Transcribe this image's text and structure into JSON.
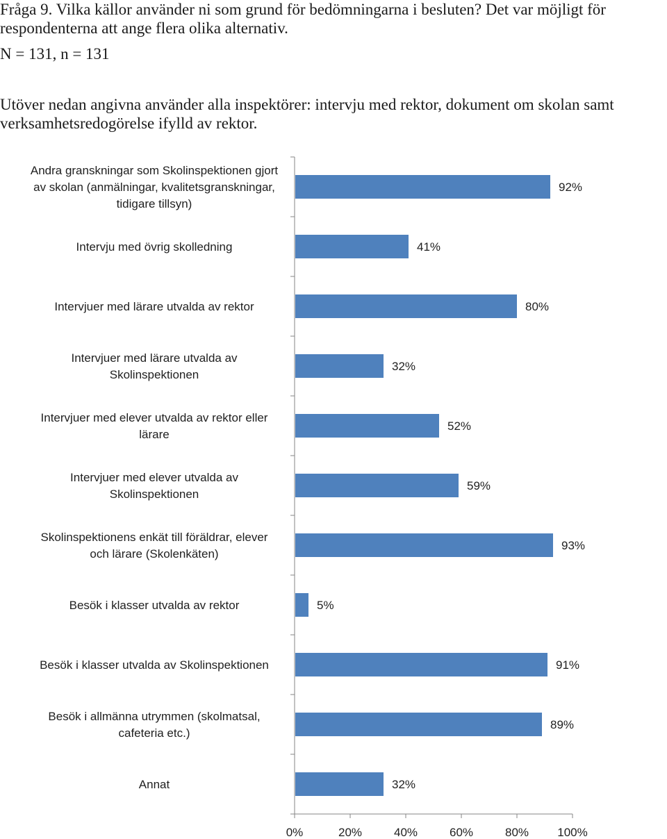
{
  "header": {
    "question": "Fråga 9. Vilka källor använder ni som grund för bedömningarna i besluten? Det var möjligt för respondenterna att ange flera olika alternativ.",
    "sample": "N = 131, n = 131",
    "note": "Utöver nedan angivna använder alla inspektörer: intervju med rektor, dokument om skolan samt verksamhetsredogörelse ifylld av rektor."
  },
  "chart_data": {
    "type": "bar",
    "orientation": "horizontal",
    "categories": [
      [
        "Andra granskningar som Skolinspektionen gjort",
        "av skolan (anmälningar, kvalitetsgranskningar,",
        "tidigare tillsyn)"
      ],
      [
        "Intervju med övrig skolledning"
      ],
      [
        "Intervjuer med lärare utvalda av rektor"
      ],
      [
        "Intervjuer med lärare utvalda av",
        "Skolinspektionen"
      ],
      [
        "Intervjuer med elever utvalda av rektor eller",
        "lärare"
      ],
      [
        "Intervjuer med elever utvalda av",
        "Skolinspektionen"
      ],
      [
        "Skolinspektionens enkät till föräldrar, elever",
        "och lärare (Skolenkäten)"
      ],
      [
        "Besök i klasser utvalda av rektor"
      ],
      [
        "Besök i klasser utvalda av Skolinspektionen"
      ],
      [
        "Besök i allmänna utrymmen (skolmatsal,",
        "cafeteria etc.)"
      ],
      [
        "Annat"
      ]
    ],
    "values": [
      92,
      41,
      80,
      32,
      52,
      59,
      93,
      5,
      91,
      89,
      32
    ],
    "data_labels": [
      "92%",
      "41%",
      "80%",
      "32%",
      "52%",
      "59%",
      "93%",
      "5%",
      "91%",
      "89%",
      "32%"
    ],
    "xlim": [
      0,
      100
    ],
    "x_ticks": [
      "0%",
      "20%",
      "40%",
      "60%",
      "80%",
      "100%"
    ],
    "grid": false,
    "bar_color": "#4f81bd",
    "axis_color": "#868686"
  }
}
